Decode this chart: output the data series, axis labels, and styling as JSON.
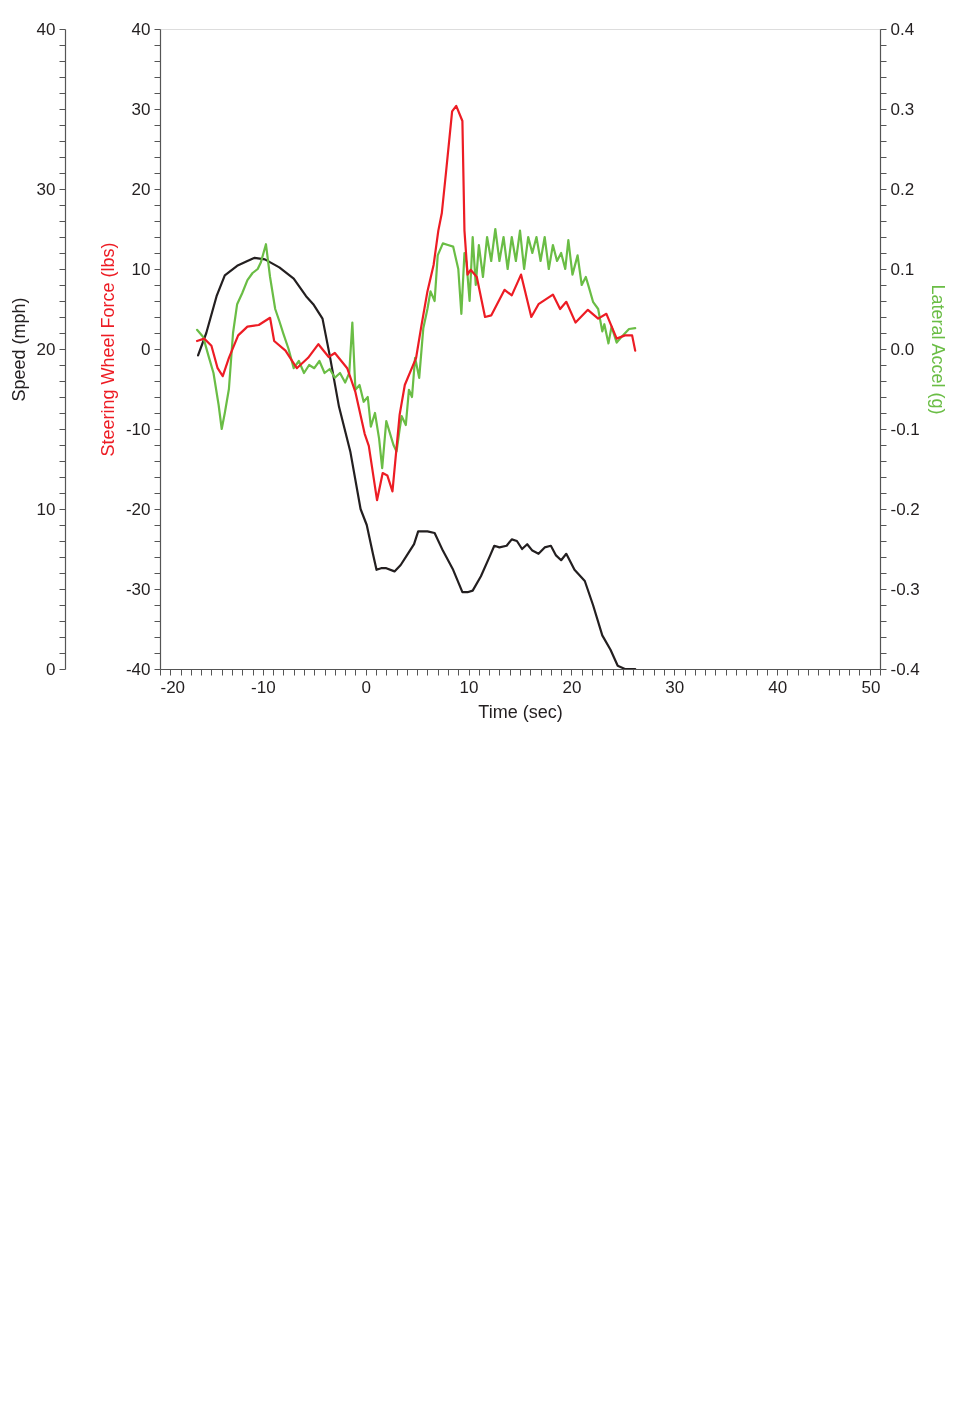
{
  "chart_data": {
    "type": "line",
    "xlabel": "Time (sec)",
    "ylabel": "Speed (mph)",
    "y2label": "Steering Wheel Force (lbs)",
    "y3label": "Lateral Accel (g)",
    "xlim": [
      -20,
      50
    ],
    "xticks": [
      -20,
      {
        "value": -19,
        "label": null
      },
      {
        "value": -18,
        "label": null
      },
      {
        "value": -17,
        "label": null
      },
      {
        "value": -16,
        "label": null
      },
      {
        "value": -15,
        "label": null
      },
      {
        "value": -14,
        "label": null
      },
      {
        "value": -13,
        "label": null
      },
      {
        "value": -12,
        "label": null
      },
      {
        "value": -11,
        "label": null
      },
      -10,
      {
        "value": -9,
        "label": null
      },
      {
        "value": -8,
        "label": null
      },
      {
        "value": -7,
        "label": null
      },
      {
        "value": -6,
        "label": null
      },
      {
        "value": -5,
        "label": null
      },
      {
        "value": -4,
        "label": null
      },
      {
        "value": -3,
        "label": null
      },
      {
        "value": -2,
        "label": null
      },
      {
        "value": -1,
        "label": null
      },
      0,
      {
        "value": 1,
        "label": null
      },
      {
        "value": 2,
        "label": null
      },
      {
        "value": 3,
        "label": null
      },
      {
        "value": 4,
        "label": null
      },
      {
        "value": 5,
        "label": null
      },
      {
        "value": 6,
        "label": null
      },
      {
        "value": 7,
        "label": null
      },
      {
        "value": 8,
        "label": null
      },
      {
        "value": 9,
        "label": null
      },
      10,
      {
        "value": 11,
        "label": null
      },
      {
        "value": 12,
        "label": null
      },
      {
        "value": 13,
        "label": null
      },
      {
        "value": 14,
        "label": null
      },
      {
        "value": 15,
        "label": null
      },
      {
        "value": 16,
        "label": null
      },
      {
        "value": 17,
        "label": null
      },
      {
        "value": 18,
        "label": null
      },
      {
        "value": 19,
        "label": null
      },
      20,
      {
        "value": 21,
        "label": null
      },
      {
        "value": 22,
        "label": null
      },
      {
        "value": 23,
        "label": null
      },
      {
        "value": 24,
        "label": null
      },
      {
        "value": 25,
        "label": null
      },
      {
        "value": 26,
        "label": null
      },
      {
        "value": 27,
        "label": null
      },
      {
        "value": 28,
        "label": null
      },
      {
        "value": 29,
        "label": null
      },
      30,
      {
        "value": 31,
        "label": null
      },
      {
        "value": 32,
        "label": null
      },
      {
        "value": 33,
        "label": null
      },
      {
        "value": 34,
        "label": null
      },
      {
        "value": 35,
        "label": null
      },
      {
        "value": 36,
        "label": null
      },
      {
        "value": 37,
        "label": null
      },
      {
        "value": 38,
        "label": null
      },
      {
        "value": 39,
        "label": null
      },
      40,
      {
        "value": 41,
        "label": null
      },
      {
        "value": 42,
        "label": null
      },
      {
        "value": 43,
        "label": null
      },
      {
        "value": 44,
        "label": null
      },
      {
        "value": 45,
        "label": null
      },
      {
        "value": 46,
        "label": null
      },
      {
        "value": 47,
        "label": null
      },
      {
        "value": 48,
        "label": null
      },
      {
        "value": 49,
        "label": null
      },
      50
    ],
    "ylim": [
      0,
      40
    ],
    "yticks": [
      0,
      {
        "value": 1,
        "label": null
      },
      {
        "value": 2,
        "label": null
      },
      {
        "value": 3,
        "label": null
      },
      {
        "value": 4,
        "label": null
      },
      {
        "value": 5,
        "label": null
      },
      {
        "value": 6,
        "label": null
      },
      {
        "value": 7,
        "label": null
      },
      {
        "value": 8,
        "label": null
      },
      {
        "value": 9,
        "label": null
      },
      10,
      {
        "value": 11,
        "label": null
      },
      {
        "value": 12,
        "label": null
      },
      {
        "value": 13,
        "label": null
      },
      {
        "value": 14,
        "label": null
      },
      {
        "value": 15,
        "label": null
      },
      {
        "value": 16,
        "label": null
      },
      {
        "value": 17,
        "label": null
      },
      {
        "value": 18,
        "label": null
      },
      {
        "value": 19,
        "label": null
      },
      20,
      {
        "value": 21,
        "label": null
      },
      {
        "value": 22,
        "label": null
      },
      {
        "value": 23,
        "label": null
      },
      {
        "value": 24,
        "label": null
      },
      {
        "value": 25,
        "label": null
      },
      {
        "value": 26,
        "label": null
      },
      {
        "value": 27,
        "label": null
      },
      {
        "value": 28,
        "label": null
      },
      {
        "value": 29,
        "label": null
      },
      30,
      {
        "value": 31,
        "label": null
      },
      {
        "value": 32,
        "label": null
      },
      {
        "value": 33,
        "label": null
      },
      {
        "value": 34,
        "label": null
      },
      {
        "value": 35,
        "label": null
      },
      {
        "value": 36,
        "label": null
      },
      {
        "value": 37,
        "label": null
      },
      {
        "value": 38,
        "label": null
      },
      {
        "value": 39,
        "label": null
      },
      40
    ],
    "y2lim": [
      -40,
      40
    ],
    "y2ticks": [
      -40,
      {
        "value": -38,
        "label": null
      },
      {
        "value": -36,
        "label": null
      },
      {
        "value": -34,
        "label": null
      },
      {
        "value": -32,
        "label": null
      },
      -30,
      {
        "value": -28,
        "label": null
      },
      {
        "value": -26,
        "label": null
      },
      {
        "value": -24,
        "label": null
      },
      {
        "value": -22,
        "label": null
      },
      -20,
      {
        "value": -18,
        "label": null
      },
      {
        "value": -16,
        "label": null
      },
      {
        "value": -14,
        "label": null
      },
      {
        "value": -12,
        "label": null
      },
      -10,
      {
        "value": -8,
        "label": null
      },
      {
        "value": -6,
        "label": null
      },
      {
        "value": -4,
        "label": null
      },
      {
        "value": -2,
        "label": null
      },
      0,
      {
        "value": 2,
        "label": null
      },
      {
        "value": 4,
        "label": null
      },
      {
        "value": 6,
        "label": null
      },
      {
        "value": 8,
        "label": null
      },
      10,
      {
        "value": 12,
        "label": null
      },
      {
        "value": 14,
        "label": null
      },
      {
        "value": 16,
        "label": null
      },
      {
        "value": 18,
        "label": null
      },
      20,
      {
        "value": 22,
        "label": null
      },
      {
        "value": 24,
        "label": null
      },
      {
        "value": 26,
        "label": null
      },
      {
        "value": 28,
        "label": null
      },
      30,
      {
        "value": 32,
        "label": null
      },
      {
        "value": 34,
        "label": null
      },
      {
        "value": 36,
        "label": null
      },
      {
        "value": 38,
        "label": null
      },
      40
    ],
    "y3lim": [
      -0.4,
      0.4
    ],
    "y3ticks": [
      -0.4,
      {
        "value": -0.38,
        "label": null
      },
      {
        "value": -0.36,
        "label": null
      },
      {
        "value": -0.34,
        "label": null
      },
      {
        "value": -0.32,
        "label": null
      },
      -0.3,
      {
        "value": -0.28,
        "label": null
      },
      {
        "value": -0.26,
        "label": null
      },
      {
        "value": -0.24,
        "label": null
      },
      {
        "value": -0.22,
        "label": null
      },
      -0.2,
      {
        "value": -0.18,
        "label": null
      },
      {
        "value": -0.16,
        "label": null
      },
      {
        "value": -0.14,
        "label": null
      },
      {
        "value": -0.12,
        "label": null
      },
      -0.1,
      {
        "value": -0.08,
        "label": null
      },
      {
        "value": -0.06,
        "label": null
      },
      {
        "value": -0.04,
        "label": null
      },
      {
        "value": -0.02,
        "label": null
      },
      {
        "value": 0,
        "label": "0.0"
      },
      {
        "value": 0.02,
        "label": null
      },
      {
        "value": 0.04,
        "label": null
      },
      {
        "value": 0.06,
        "label": null
      },
      {
        "value": 0.08,
        "label": null
      },
      0.1,
      {
        "value": 0.12,
        "label": null
      },
      {
        "value": 0.14,
        "label": null
      },
      {
        "value": 0.16,
        "label": null
      },
      {
        "value": 0.18,
        "label": null
      },
      0.2,
      {
        "value": 0.22,
        "label": null
      },
      {
        "value": 0.24,
        "label": null
      },
      {
        "value": 0.26,
        "label": null
      },
      {
        "value": 0.28,
        "label": null
      },
      0.3,
      {
        "value": 0.32,
        "label": null
      },
      {
        "value": 0.34,
        "label": null
      },
      {
        "value": 0.36,
        "label": null
      },
      {
        "value": 0.38,
        "label": null
      },
      0.4
    ],
    "line_style": "solid",
    "series": [
      {
        "axis": "y",
        "color": "#231f20",
        "x": [
          -16.3,
          -15.5,
          -14.5,
          -13.7,
          -12.5,
          -11.5,
          -10.8,
          -9.8,
          -8.4,
          -7,
          -5.8,
          -5.1,
          -4.2,
          -3.5,
          -2.6,
          -1.5,
          -0.5,
          0.1,
          0.7,
          1.05,
          1.5,
          2.0,
          2.8,
          3.4,
          4.0,
          4.7,
          5.1,
          5.5,
          6.0,
          6.7,
          7.5,
          8.5,
          9.4,
          9.9,
          10.4,
          11.2,
          12.1,
          12.5,
          13.0,
          13.7,
          14.2,
          14.7,
          15.2,
          15.7,
          16.2,
          16.8,
          17.4,
          18.0,
          18.5,
          19.0,
          19.5,
          20.3,
          21.3,
          22.1,
          23.0,
          23.8,
          24.5,
          25.2,
          26.2
        ],
        "values": [
          19.6,
          21.0,
          23.3,
          24.6,
          25.2,
          25.5,
          25.7,
          25.6,
          25.1,
          24.4,
          23.3,
          22.8,
          21.9,
          19.6,
          16.4,
          13.6,
          10.0,
          9.0,
          7.2,
          6.2,
          6.3,
          6.3,
          6.1,
          6.5,
          7.1,
          7.8,
          8.6,
          8.6,
          8.6,
          8.5,
          7.4,
          6.2,
          4.8,
          4.8,
          4.9,
          5.8,
          7.1,
          7.7,
          7.6,
          7.7,
          8.1,
          8.0,
          7.5,
          7.8,
          7.4,
          7.2,
          7.6,
          7.7,
          7.1,
          6.8,
          7.2,
          6.2,
          5.5,
          4.0,
          2.1,
          1.2,
          0.2,
          0.0,
          0.0
        ]
      },
      {
        "axis": "y3",
        "color": "#6abd45",
        "x": [
          -16.4,
          -15.8,
          -15.3,
          -14.8,
          -14.3,
          -14.0,
          -13.7,
          -13.3,
          -12.9,
          -12.5,
          -12.0,
          -11.5,
          -11.0,
          -10.5,
          -10.2,
          -9.7,
          -9.3,
          -8.8,
          -8.4,
          -8.0,
          -7.5,
          -7.0,
          -6.5,
          -6.0,
          -5.5,
          -5.0,
          -4.5,
          -4.0,
          -3.5,
          -3.0,
          -2.5,
          -2.0,
          -1.6,
          -1.3,
          -1.0,
          -0.6,
          -0.2,
          0.2,
          0.5,
          0.9,
          1.3,
          1.6,
          2.0,
          2.3,
          2.7,
          3.0,
          3.3,
          3.5,
          3.9,
          4.2,
          4.5,
          4.8,
          5.2,
          5.6,
          6.0,
          6.3,
          6.7,
          7.0,
          7.5,
          8.0,
          8.5,
          9.0,
          9.3,
          9.6,
          9.8,
          10.1,
          10.4,
          10.7,
          11.0,
          11.4,
          11.8,
          12.2,
          12.6,
          13.0,
          13.4,
          13.8,
          14.2,
          14.6,
          15.0,
          15.4,
          15.8,
          16.2,
          16.6,
          17.0,
          17.4,
          17.8,
          18.2,
          18.6,
          19.0,
          19.4,
          19.7,
          20.1,
          20.6,
          21.0,
          21.4,
          21.7,
          22.1,
          22.6,
          23.0,
          23.2,
          23.6,
          23.9,
          24.4,
          25.0,
          25.6,
          26.2
        ],
        "values": [
          0.024,
          0.015,
          -0.008,
          -0.03,
          -0.07,
          -0.1,
          -0.08,
          -0.05,
          0.02,
          0.056,
          0.07,
          0.086,
          0.095,
          0.1,
          0.108,
          0.131,
          0.09,
          0.05,
          0.035,
          0.019,
          0.0,
          -0.024,
          -0.015,
          -0.03,
          -0.02,
          -0.024,
          -0.015,
          -0.03,
          -0.025,
          -0.036,
          -0.03,
          -0.042,
          -0.03,
          0.033,
          -0.051,
          -0.045,
          -0.066,
          -0.06,
          -0.097,
          -0.08,
          -0.112,
          -0.149,
          -0.09,
          -0.103,
          -0.12,
          -0.128,
          -0.1,
          -0.084,
          -0.095,
          -0.051,
          -0.06,
          -0.011,
          -0.036,
          0.026,
          0.05,
          0.072,
          0.06,
          0.117,
          0.132,
          0.13,
          0.128,
          0.1,
          0.044,
          0.12,
          0.108,
          0.06,
          0.14,
          0.08,
          0.13,
          0.09,
          0.14,
          0.11,
          0.15,
          0.11,
          0.14,
          0.1,
          0.14,
          0.11,
          0.148,
          0.1,
          0.14,
          0.12,
          0.14,
          0.11,
          0.14,
          0.1,
          0.13,
          0.11,
          0.12,
          0.1,
          0.136,
          0.093,
          0.117,
          0.08,
          0.09,
          0.077,
          0.059,
          0.05,
          0.022,
          0.031,
          0.007,
          0.028,
          0.008,
          0.017,
          0.025,
          0.026
        ]
      },
      {
        "axis": "y2",
        "color": "#ed1c24",
        "x": [
          -16.4,
          -15.7,
          -15.0,
          -14.4,
          -13.9,
          -13.3,
          -12.4,
          -11.5,
          -10.4,
          -9.3,
          -8.9,
          -7.8,
          -6.7,
          -5.6,
          -4.6,
          -3.6,
          -3.0,
          -1.8,
          -1.0,
          -0.1,
          0.3,
          1.1,
          1.65,
          2.1,
          2.6,
          3.3,
          3.8,
          4.9,
          5.4,
          6.0,
          6.6,
          7.06,
          7.4,
          7.8,
          8.4,
          8.8,
          9.4,
          9.6,
          9.9,
          10.2,
          10.8,
          11.6,
          12.2,
          13.5,
          14.2,
          15.1,
          16.1,
          16.8,
          18.2,
          18.9,
          19.5,
          20.4,
          21.6,
          22.6,
          23.4,
          24.4,
          25.2,
          25.9,
          26.2
        ],
        "values": [
          1.0,
          1.3,
          0.4,
          -2.4,
          -3.4,
          -1.1,
          1.7,
          2.8,
          3.0,
          3.9,
          1.0,
          -0.2,
          -2.4,
          -1.1,
          0.6,
          -1.0,
          -0.5,
          -2.4,
          -5.4,
          -10.6,
          -12.1,
          -18.9,
          -15.5,
          -15.8,
          -17.8,
          -8.2,
          -4.5,
          -1.1,
          2.8,
          7.2,
          10.5,
          14.8,
          17,
          22,
          29.7,
          30.4,
          28.5,
          14.8,
          9.3,
          9.9,
          9.0,
          4.0,
          4.2,
          7.4,
          6.7,
          9.3,
          4.0,
          5.6,
          6.8,
          5.0,
          5.9,
          3.3,
          4.9,
          3.8,
          4.4,
          1.3,
          1.7,
          1.7,
          -0.2
        ]
      }
    ]
  }
}
